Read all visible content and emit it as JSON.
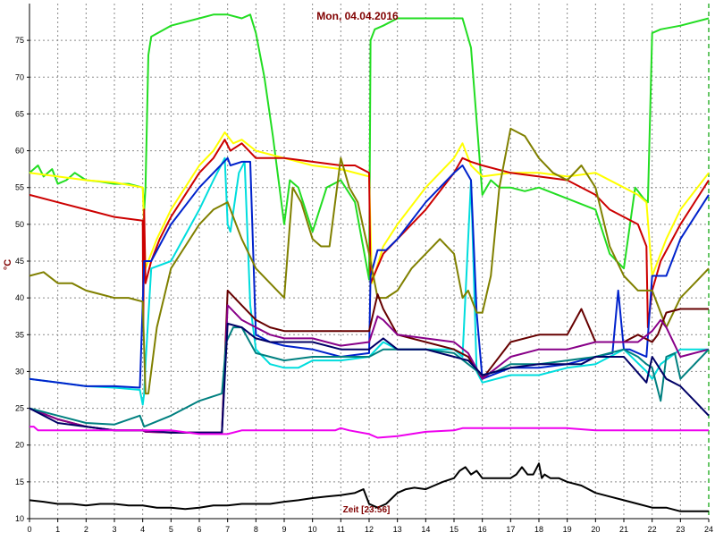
{
  "chart_data": {
    "type": "line",
    "title": "Mon, 04.04.2016",
    "xlabel": "Zeit [23:56]",
    "ylabel": "°C",
    "xlim": [
      0,
      24
    ],
    "ylim": [
      10,
      80
    ],
    "x_ticks": [
      "0",
      "1",
      "2",
      "3",
      "4",
      "5",
      "6",
      "7",
      "8",
      "9",
      "10",
      "11",
      "12",
      "13",
      "14",
      "15",
      "16",
      "17",
      "18",
      "19",
      "20",
      "21",
      "22",
      "23",
      "24"
    ],
    "y_ticks": [
      "10",
      "15",
      "20",
      "25",
      "30",
      "35",
      "40",
      "45",
      "50",
      "55",
      "60",
      "65",
      "70",
      "75"
    ],
    "grid": true,
    "colors": {
      "title": "#800000",
      "xlabel": "#800000",
      "ylabel": "#800000",
      "grid": "#8a8a8a",
      "marker": "#00a000"
    },
    "series": [
      {
        "color": "#22dd22",
        "x": [
          0,
          0.3,
          0.5,
          0.8,
          1.0,
          1.3,
          1.6,
          2,
          2.5,
          3,
          3.5,
          4,
          4.05,
          4.1,
          4.2,
          4.3,
          5,
          6,
          6.5,
          7,
          7.5,
          7.8,
          8,
          8.3,
          8.6,
          9,
          9.2,
          9.5,
          10,
          10.5,
          11,
          11.5,
          12,
          12.05,
          12.2,
          12.5,
          13,
          15,
          15.3,
          15.6,
          16,
          16.3,
          16.6,
          17,
          17.5,
          18,
          19,
          20,
          20.5,
          21,
          21.4,
          21.7,
          21.85,
          22,
          22.3,
          23,
          24
        ],
        "y": [
          57,
          58,
          56.5,
          57.5,
          55.5,
          56,
          57,
          56,
          55.8,
          55.5,
          55.5,
          55,
          51.8,
          55,
          73,
          75.5,
          77,
          78,
          78.5,
          78.5,
          78,
          78.5,
          76,
          70,
          62,
          50,
          56,
          55,
          49,
          55,
          56,
          53,
          42.5,
          75,
          76.5,
          77,
          78,
          78,
          78,
          74,
          54,
          56,
          55,
          55,
          54.5,
          55,
          53.5,
          52,
          46,
          44,
          55,
          53.5,
          53,
          76,
          76.5,
          77,
          78
        ]
      },
      {
        "color": "#ffff00",
        "x": [
          0,
          1,
          2,
          3,
          4,
          4.1,
          4.5,
          5,
          6,
          6.5,
          6.9,
          7.2,
          7.5,
          8,
          9,
          10,
          11,
          12,
          12.1,
          12.5,
          13,
          14,
          15,
          15.3,
          15.6,
          16,
          17,
          18,
          19,
          20,
          21,
          21.5,
          21.8,
          22,
          22.5,
          23,
          24
        ],
        "y": [
          57,
          56.5,
          56,
          55.7,
          55,
          44,
          48,
          52,
          58,
          60,
          62.5,
          61,
          61.5,
          60,
          59,
          58,
          57.5,
          56.5,
          42,
          47,
          50,
          55,
          59,
          61,
          58,
          56.5,
          57,
          57,
          56.5,
          57,
          55,
          54,
          53,
          43,
          48,
          52,
          57
        ]
      },
      {
        "color": "#cc0000",
        "x": [
          0,
          1,
          2,
          3,
          4,
          4.02,
          4.05,
          4.1,
          4.3,
          4.6,
          5,
          6,
          6.5,
          6.9,
          7.1,
          7.5,
          8,
          9,
          10,
          11,
          11.5,
          12,
          12.05,
          12.5,
          13,
          14,
          15,
          15.3,
          15.6,
          16,
          17,
          18,
          19,
          20,
          20.5,
          21,
          21.5,
          21.8,
          21.85,
          22,
          22.3,
          23,
          24
        ],
        "y": [
          54,
          53,
          52,
          51,
          50.5,
          36,
          52,
          42,
          45,
          48,
          51,
          57,
          59,
          61.5,
          60,
          61,
          59,
          59,
          58.5,
          58,
          58,
          57,
          42,
          46,
          48,
          52,
          57,
          59,
          58.5,
          58,
          57,
          56.5,
          56,
          54,
          52,
          51,
          50,
          47,
          36,
          41,
          45,
          50,
          56
        ]
      },
      {
        "color": "#00dddd",
        "x": [
          0,
          1,
          2,
          3,
          3.9,
          4,
          4.05,
          4.1,
          4.3,
          5,
          6,
          6.5,
          6.9,
          7,
          7.1,
          7.4,
          7.6,
          7.8,
          8,
          8.5,
          9,
          9.5,
          10,
          11,
          12,
          12.5,
          13,
          14,
          15,
          15.3,
          15.6,
          15.8,
          16,
          17,
          18,
          19,
          20,
          21,
          21.8,
          22,
          22.3,
          23,
          24
        ],
        "y": [
          29,
          28.5,
          28,
          27.8,
          27.5,
          25.5,
          27,
          31,
          44,
          45,
          52,
          56,
          59,
          50,
          49,
          57,
          58.5,
          39,
          33,
          31,
          30.5,
          30.5,
          31.5,
          31.5,
          32,
          34,
          33,
          33,
          33,
          32,
          56,
          30,
          28.5,
          29.5,
          29.5,
          30.5,
          31,
          33,
          30,
          29,
          31,
          33,
          33
        ]
      },
      {
        "color": "#0022cc",
        "x": [
          0,
          1,
          2,
          3,
          3.9,
          4.05,
          4.3,
          5,
          6,
          6.5,
          7,
          7.1,
          7.5,
          7.8,
          8,
          8.5,
          9,
          10,
          11,
          12,
          12.05,
          12.3,
          12.6,
          13,
          14,
          15,
          15.3,
          15.6,
          15.8,
          16,
          17,
          18,
          19,
          20,
          20.6,
          20.8,
          21,
          21.2,
          21.8,
          22,
          22.5,
          23,
          24
        ],
        "y": [
          29,
          28.5,
          28,
          28,
          27.8,
          45,
          45,
          50,
          55,
          57,
          59,
          58,
          58.5,
          58.5,
          35,
          34,
          33.5,
          33,
          32,
          32.5,
          43,
          46.5,
          46.5,
          48,
          53,
          57,
          58,
          56,
          38,
          29,
          30.5,
          30.5,
          31,
          32,
          32.5,
          41,
          33,
          33,
          32,
          43,
          43,
          48,
          54
        ]
      },
      {
        "color": "#808000",
        "x": [
          0,
          0.5,
          1,
          1.5,
          2,
          2.5,
          3,
          3.5,
          4,
          4.1,
          4.2,
          4.5,
          5,
          5.5,
          6,
          6.5,
          7,
          7.5,
          8,
          8.5,
          9,
          9.3,
          9.6,
          10,
          10.3,
          10.6,
          11,
          11.3,
          11.6,
          12,
          12.3,
          12.6,
          13,
          13.5,
          14,
          14.5,
          15,
          15.3,
          15.5,
          15.8,
          16,
          16.3,
          16.6,
          17,
          17.5,
          18,
          18.5,
          19,
          19.5,
          20,
          20.5,
          21,
          21.5,
          22,
          22.5,
          23,
          23.5,
          24
        ],
        "y": [
          43,
          43.5,
          42,
          42,
          41,
          40.5,
          40,
          40,
          39.5,
          27,
          27,
          36,
          44,
          47,
          50,
          52,
          53,
          48,
          44,
          42,
          40,
          55,
          53,
          48,
          47,
          47,
          59,
          55,
          53,
          46,
          40,
          40,
          41,
          44,
          46,
          48,
          46,
          40,
          41,
          38,
          38,
          43,
          55,
          63,
          62,
          59,
          57,
          56,
          58,
          55,
          47,
          43,
          41,
          41,
          36,
          40,
          42,
          44
        ]
      },
      {
        "color": "#660000",
        "x": [
          0,
          1,
          2,
          3,
          4,
          4.1,
          5,
          6,
          6.8,
          7,
          7.5,
          8,
          8.5,
          9,
          10,
          11,
          12,
          12.3,
          12.5,
          13,
          14,
          15,
          15.5,
          16,
          17,
          18,
          19,
          19.5,
          20,
          21,
          21.5,
          22,
          22.2,
          22.5,
          23,
          24
        ],
        "y": [
          25,
          23.5,
          22.5,
          22,
          22,
          21.8,
          21.7,
          21.7,
          21.7,
          41,
          39,
          37,
          36,
          35.5,
          35.5,
          35.5,
          35.5,
          40.5,
          38.5,
          35,
          34,
          33,
          32,
          29,
          34,
          35,
          35,
          38.5,
          34,
          34,
          35,
          34,
          35,
          38,
          38.5,
          38.5
        ]
      },
      {
        "color": "#880088",
        "x": [
          0,
          1,
          2,
          3,
          4,
          4.1,
          5,
          6,
          6.8,
          7,
          7.5,
          8,
          8.5,
          9,
          10,
          11,
          12,
          12.3,
          12.5,
          13,
          14,
          15,
          15.5,
          16,
          17,
          18,
          19,
          19.5,
          20,
          21,
          21.5,
          22,
          22.3,
          22.5,
          23,
          24
        ],
        "y": [
          25,
          23.5,
          22.5,
          22,
          22,
          21.8,
          21.7,
          21.7,
          21.7,
          39,
          37,
          36,
          35,
          34.5,
          34.5,
          33.5,
          34,
          37.5,
          37,
          35,
          34.5,
          34,
          32.5,
          29,
          32,
          33,
          33,
          33.5,
          34,
          34,
          34,
          35.5,
          37,
          36,
          32,
          33
        ]
      },
      {
        "color": "#008080",
        "x": [
          0,
          1,
          2,
          3,
          3.9,
          4.05,
          5,
          6,
          6.8,
          6.95,
          7.2,
          7.5,
          8,
          9,
          10,
          11,
          12,
          12.5,
          13,
          14,
          15,
          15.5,
          16,
          16.5,
          17,
          18,
          19,
          20,
          21,
          21.5,
          21.8,
          22,
          22.3,
          22.5,
          22.8,
          23,
          23.5,
          24
        ],
        "y": [
          25,
          24,
          23,
          22.8,
          24,
          22.5,
          24,
          26,
          27,
          34,
          36,
          36,
          32.5,
          31.5,
          32,
          32,
          32,
          33,
          33,
          33,
          32.5,
          31,
          29.5,
          30,
          31,
          31,
          31.5,
          32,
          33,
          32,
          31,
          30.5,
          26,
          32,
          32.5,
          29,
          31,
          33
        ]
      },
      {
        "color": "#000066",
        "x": [
          0,
          1,
          2,
          3,
          3.9,
          4.1,
          5,
          6,
          6.8,
          7,
          7.5,
          8,
          8.5,
          9,
          10,
          11,
          12,
          12.5,
          13,
          14,
          15,
          15.5,
          16,
          17,
          18,
          19,
          19.5,
          20,
          21,
          21.8,
          22,
          22.5,
          23,
          23.5,
          24
        ],
        "y": [
          25,
          23,
          22.5,
          22,
          22,
          22,
          21.7,
          21.7,
          21.7,
          36.5,
          36,
          34.5,
          34,
          34,
          34,
          33,
          33,
          34.5,
          33,
          33,
          32,
          31.5,
          29.5,
          30.5,
          31,
          31,
          31,
          32,
          32,
          28.5,
          32,
          29,
          28,
          26,
          24
        ]
      },
      {
        "color": "#ee00ee",
        "x": [
          0,
          0.15,
          0.3,
          1,
          2,
          3,
          4,
          5,
          6,
          7,
          7.5,
          8,
          9,
          10,
          10.8,
          11,
          11.3,
          12,
          12.3,
          13,
          14,
          15,
          15.3,
          16,
          17,
          18,
          19,
          20,
          21,
          22,
          23,
          24
        ],
        "y": [
          22.5,
          22.5,
          22,
          22,
          22,
          22,
          22,
          22,
          21.5,
          21.5,
          22,
          22,
          22,
          22,
          22,
          22.3,
          22,
          21.5,
          21,
          21.2,
          21.8,
          22,
          22.3,
          22.3,
          22.3,
          22.3,
          22.3,
          22,
          22,
          22,
          22,
          22
        ]
      },
      {
        "color": "#000000",
        "x": [
          0,
          0.5,
          1,
          1.5,
          2,
          2.5,
          3,
          3.5,
          4,
          4.5,
          5,
          5.5,
          6,
          6.5,
          7,
          7.5,
          8,
          8.5,
          9,
          9.5,
          10,
          10.5,
          11,
          11.5,
          11.8,
          12,
          12.3,
          12.6,
          13,
          13.3,
          13.6,
          14,
          14.3,
          14.6,
          15,
          15.2,
          15.4,
          15.6,
          15.8,
          16,
          16.3,
          16.6,
          17,
          17.2,
          17.4,
          17.6,
          17.8,
          18,
          18.1,
          18.2,
          18.4,
          18.7,
          19,
          19.5,
          20,
          20.5,
          21,
          21.5,
          22,
          22.5,
          23,
          23.5,
          24
        ],
        "y": [
          12.5,
          12.3,
          12,
          12,
          11.8,
          12,
          12,
          11.8,
          11.8,
          11.5,
          11.5,
          11.3,
          11.5,
          11.8,
          11.8,
          12,
          12,
          12,
          12.3,
          12.5,
          12.8,
          13,
          13.2,
          13.5,
          14,
          12,
          11.5,
          12,
          13.5,
          14,
          14.2,
          14,
          14.5,
          15,
          15.5,
          16.5,
          17,
          16,
          16.5,
          15.5,
          15.5,
          15.5,
          15.5,
          16,
          17,
          16,
          16,
          17.5,
          15.5,
          16,
          15.5,
          15.5,
          15,
          14.5,
          13.5,
          13,
          12.5,
          12,
          11.5,
          11.5,
          11,
          11,
          11
        ]
      }
    ]
  }
}
